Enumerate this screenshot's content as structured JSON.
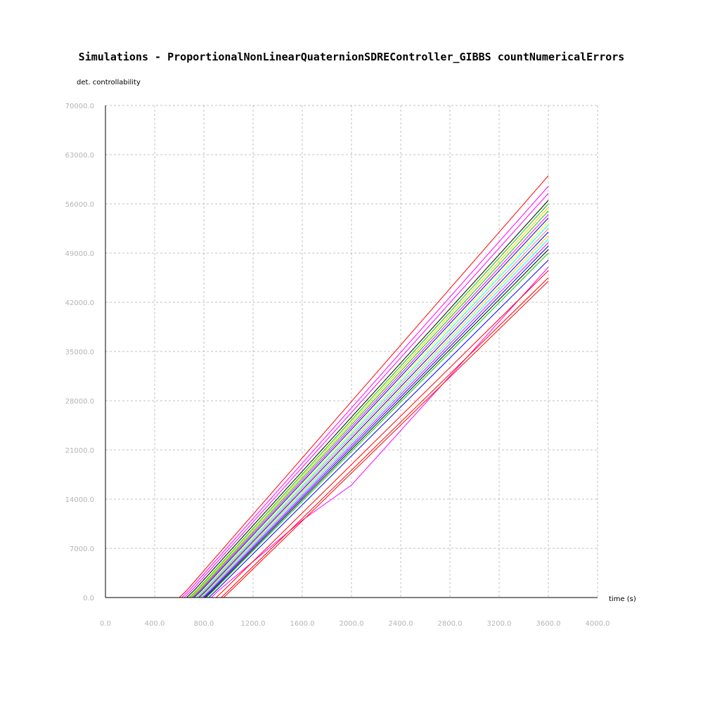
{
  "chart_data": {
    "type": "line",
    "title": "Simulations - ProportionalNonLinearQuaternionSDREController_GIBBS countNumericalErrors",
    "xlabel": "time (s)",
    "ylabel": "det. controllability",
    "xlim": [
      0,
      4000
    ],
    "ylim": [
      0,
      70000
    ],
    "x_ticks": [
      "0.0",
      "400.0",
      "800.0",
      "1200.0",
      "1600.0",
      "2000.0",
      "2400.0",
      "2800.0",
      "3200.0",
      "3600.0",
      "4000.0"
    ],
    "y_ticks": [
      "0.0",
      "7000.0",
      "14000.0",
      "21000.0",
      "28000.0",
      "35000.0",
      "42000.0",
      "49000.0",
      "56000.0",
      "63000.0",
      "70000.0"
    ],
    "grid": true,
    "legend": "none",
    "series": [
      {
        "color": "#ff0000",
        "x": [
          0,
          600,
          660,
          3600
        ],
        "y": [
          0,
          0,
          1000,
          60000
        ]
      },
      {
        "color": "#ff00ff",
        "x": [
          0,
          620,
          680,
          3600
        ],
        "y": [
          0,
          0,
          1000,
          58500
        ]
      },
      {
        "color": "#ff00ff",
        "x": [
          0,
          640,
          700,
          3600
        ],
        "y": [
          0,
          0,
          1000,
          57500
        ]
      },
      {
        "color": "#000000",
        "x": [
          0,
          660,
          720,
          3600
        ],
        "y": [
          0,
          0,
          1000,
          56500
        ]
      },
      {
        "color": "#00cc00",
        "x": [
          0,
          680,
          740,
          3600
        ],
        "y": [
          0,
          0,
          1000,
          56000
        ]
      },
      {
        "color": "#ffc800",
        "x": [
          0,
          690,
          750,
          3600
        ],
        "y": [
          0,
          0,
          1000,
          55500
        ]
      },
      {
        "color": "#00cc00",
        "x": [
          0,
          700,
          760,
          3600
        ],
        "y": [
          0,
          0,
          1000,
          55000
        ]
      },
      {
        "color": "#ff00ff",
        "x": [
          0,
          710,
          770,
          3600
        ],
        "y": [
          0,
          0,
          1000,
          54500
        ]
      },
      {
        "color": "#0000ff",
        "x": [
          0,
          720,
          780,
          3600
        ],
        "y": [
          0,
          0,
          1000,
          54000
        ]
      },
      {
        "color": "#ffff00",
        "x": [
          0,
          730,
          790,
          3600
        ],
        "y": [
          0,
          0,
          1000,
          53500
        ]
      },
      {
        "color": "#00ffff",
        "x": [
          0,
          740,
          800,
          3600
        ],
        "y": [
          0,
          0,
          1000,
          53000
        ]
      },
      {
        "color": "#ff8080",
        "x": [
          0,
          750,
          810,
          3600
        ],
        "y": [
          0,
          0,
          1000,
          52500
        ]
      },
      {
        "color": "#0000ff",
        "x": [
          0,
          760,
          820,
          3600
        ],
        "y": [
          0,
          0,
          1000,
          52000
        ]
      },
      {
        "color": "#ffc800",
        "x": [
          0,
          770,
          830,
          3600
        ],
        "y": [
          0,
          0,
          1000,
          51500
        ]
      },
      {
        "color": "#00ffff",
        "x": [
          0,
          780,
          840,
          3600
        ],
        "y": [
          0,
          0,
          1000,
          51000
        ]
      },
      {
        "color": "#ff00ff",
        "x": [
          0,
          790,
          850,
          3600
        ],
        "y": [
          0,
          0,
          1000,
          50500
        ]
      },
      {
        "color": "#0000ff",
        "x": [
          0,
          800,
          860,
          3600
        ],
        "y": [
          0,
          0,
          1000,
          50000
        ]
      },
      {
        "color": "#000000",
        "x": [
          0,
          810,
          870,
          3600
        ],
        "y": [
          0,
          0,
          1000,
          49500
        ]
      },
      {
        "color": "#00cc00",
        "x": [
          0,
          820,
          880,
          3600
        ],
        "y": [
          0,
          0,
          1000,
          49000
        ]
      },
      {
        "color": "#0000ff",
        "x": [
          0,
          840,
          900,
          3600
        ],
        "y": [
          0,
          0,
          1000,
          48000
        ]
      },
      {
        "color": "#ff00ff",
        "x": [
          0,
          860,
          920,
          1600,
          2000,
          3600
        ],
        "y": [
          0,
          0,
          1000,
          11000,
          16000,
          47000
        ]
      },
      {
        "color": "#ff0000",
        "x": [
          0,
          900,
          960,
          3600
        ],
        "y": [
          0,
          0,
          1000,
          46500
        ]
      },
      {
        "color": "#ff0000",
        "x": [
          0,
          940,
          1000,
          3600
        ],
        "y": [
          0,
          0,
          1000,
          45500
        ]
      },
      {
        "color": "#ff0000",
        "x": [
          0,
          960,
          1020,
          3600
        ],
        "y": [
          0,
          0,
          1000,
          45000
        ]
      }
    ]
  }
}
